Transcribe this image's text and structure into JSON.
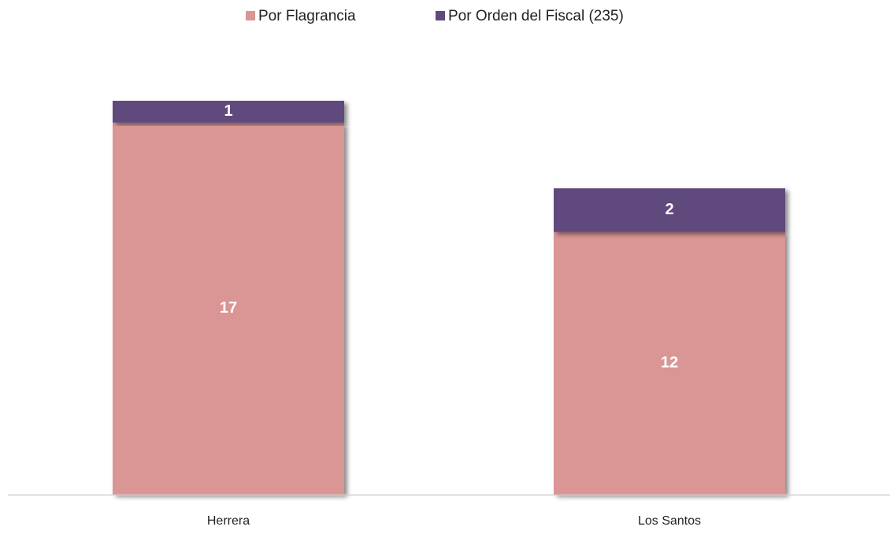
{
  "chart_data": {
    "type": "bar",
    "stacked": true,
    "categories": [
      "Herrera",
      "Los Santos"
    ],
    "series": [
      {
        "name": "Por Flagrancia",
        "color": "#d99694",
        "values": [
          17,
          12
        ]
      },
      {
        "name": "Por Orden del Fiscal (235)",
        "color": "#604a7b",
        "values": [
          1,
          2
        ]
      }
    ],
    "legend": "top"
  }
}
